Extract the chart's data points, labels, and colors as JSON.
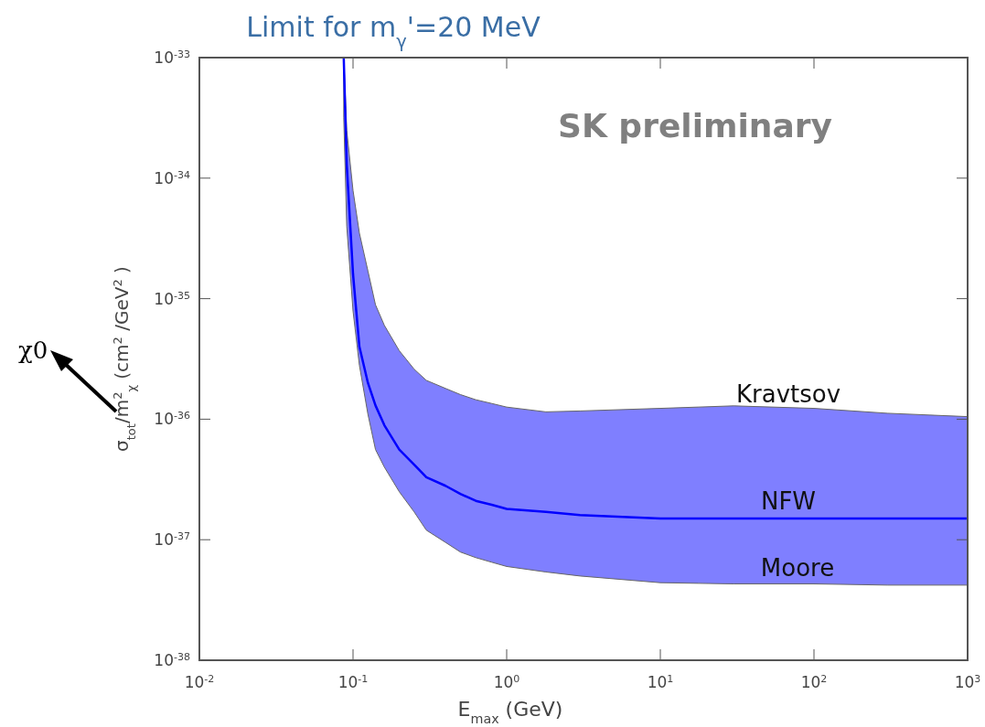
{
  "chart_data": {
    "type": "line",
    "title": "Limit for m$_{γ}$'=20 MeV",
    "xlabel": "E$_{max}$ (GeV)",
    "ylabel": "σ$_{tot}$/m$^{2}$$_{χ}$ (cm$^{2}$ /GeV$^{2}$ )",
    "log": "xy",
    "xlim": [
      0.01,
      1000
    ],
    "ylim": [
      1e-38,
      1e-33
    ],
    "xticks": [
      {
        "value": 0.01,
        "label": "10$^{-2}$"
      },
      {
        "value": 0.1,
        "label": "10$^{-1}$"
      },
      {
        "value": 1,
        "label": "10$^{0}$"
      },
      {
        "value": 10,
        "label": "10$^{1}$"
      },
      {
        "value": 100,
        "label": "10$^{2}$"
      },
      {
        "value": 1000,
        "label": "10$^{3}$"
      }
    ],
    "yticks": [
      {
        "value": 1e-38,
        "label": "10$^{-38}$"
      },
      {
        "value": 1e-37,
        "label": "10$^{-37}$"
      },
      {
        "value": 1e-36,
        "label": "10$^{-36}$"
      },
      {
        "value": 1e-35,
        "label": "10$^{-35}$"
      },
      {
        "value": 1e-34,
        "label": "10$^{-34}$"
      },
      {
        "value": 1e-33,
        "label": "10$^{-33}$"
      }
    ],
    "grid": false,
    "marker": "none",
    "line_style": "solid",
    "series": [
      {
        "color": "#0000ff",
        "x": [
          0.087,
          0.091,
          0.1,
          0.11,
          0.125,
          0.14,
          0.16,
          0.2,
          0.25,
          0.3,
          0.4,
          0.5,
          0.63,
          0.8,
          1,
          1.8,
          3,
          10,
          30,
          100,
          300,
          1000
        ],
        "values": [
          1e-33,
          1.3e-34,
          1.6e-35,
          4e-36,
          2e-36,
          1.3e-36,
          8.9e-37,
          5.6e-37,
          4.2e-37,
          3.3e-37,
          2.8e-37,
          2.4e-37,
          2.1e-37,
          1.95e-37,
          1.8e-37,
          1.7e-37,
          1.6e-37,
          1.5e-37,
          1.5e-37,
          1.5e-37,
          1.5e-37,
          1.5e-37
        ],
        "upper": [
          1e-33,
          2.5e-34,
          7.9e-35,
          3.5e-35,
          1.7e-35,
          8.9e-36,
          6e-36,
          3.7e-36,
          2.6e-36,
          2.1e-36,
          1.8e-36,
          1.6e-36,
          1.45e-36,
          1.35e-36,
          1.26e-36,
          1.15e-36,
          1.17e-36,
          1.23e-36,
          1.29e-36,
          1.23e-36,
          1.12e-36,
          1.05e-36
        ],
        "lower": [
          3.2e-34,
          4e-35,
          7.9e-36,
          2.8e-36,
          1.1e-36,
          5.6e-37,
          4e-37,
          2.5e-37,
          1.7e-37,
          1.2e-37,
          9.5e-38,
          7.9e-38,
          7.1e-38,
          6.5e-38,
          6e-38,
          5.4e-38,
          5e-38,
          4.4e-38,
          4.3e-38,
          4.3e-38,
          4.2e-38,
          4.2e-38
        ]
      }
    ],
    "annotations": [
      "SK preliminary",
      "χ0",
      "Kravtsov",
      "NFW",
      "Moore"
    ]
  }
}
